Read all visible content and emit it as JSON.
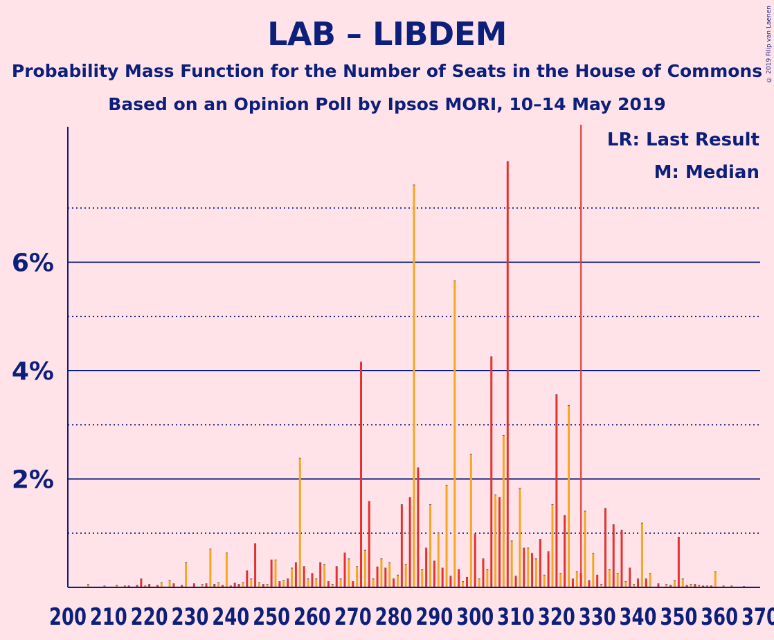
{
  "title": "LAB – LIBDEM",
  "subtitle": "Probability Mass Function for the Number of Seats in the House of Commons",
  "subtitle2": "Based on an Opinion Poll by Ipsos MORI, 10–14 May 2019",
  "copyright": "© 2019 Filip van Laenen",
  "legend": {
    "lr": "LR: Last Result",
    "m": "M: Median"
  },
  "colors": {
    "background": "#FFE3E8",
    "text": "#0C1F7A",
    "axis": "#0C1F7A",
    "lab": "#E4312F",
    "libdem": "#F5A623",
    "last_result_line": "#E4312F"
  },
  "chart_data": {
    "type": "bar",
    "x_unit": "seats",
    "y_unit": "%",
    "xlim": [
      200,
      370
    ],
    "ylim": [
      0,
      8.5
    ],
    "x_ticks": [
      200,
      210,
      220,
      230,
      240,
      250,
      260,
      270,
      280,
      290,
      300,
      310,
      320,
      330,
      340,
      350,
      360,
      370
    ],
    "y_ticks_major": [
      {
        "value": 2,
        "label": "2%"
      },
      {
        "value": 4,
        "label": "4%"
      },
      {
        "value": 6,
        "label": "6%"
      }
    ],
    "y_ticks_minor": [
      1,
      3,
      5,
      7
    ],
    "last_result": 326,
    "series": [
      {
        "name": "LAB",
        "values": [
          [
            215,
            0.02
          ],
          [
            217,
            0.03
          ],
          [
            218,
            0.15
          ],
          [
            220,
            0.05
          ],
          [
            222,
            0.03
          ],
          [
            226,
            0.06
          ],
          [
            228,
            0.03
          ],
          [
            231,
            0.06
          ],
          [
            234,
            0.06
          ],
          [
            236,
            0.05
          ],
          [
            238,
            0.03
          ],
          [
            240,
            0.02
          ],
          [
            241,
            0.07
          ],
          [
            242,
            0.05
          ],
          [
            244,
            0.3
          ],
          [
            246,
            0.8
          ],
          [
            248,
            0.05
          ],
          [
            250,
            0.5
          ],
          [
            252,
            0.1
          ],
          [
            254,
            0.15
          ],
          [
            256,
            0.45
          ],
          [
            258,
            0.38
          ],
          [
            260,
            0.25
          ],
          [
            262,
            0.45
          ],
          [
            264,
            0.1
          ],
          [
            266,
            0.38
          ],
          [
            268,
            0.63
          ],
          [
            270,
            0.1
          ],
          [
            272,
            4.15
          ],
          [
            274,
            1.58
          ],
          [
            276,
            0.37
          ],
          [
            278,
            0.35
          ],
          [
            280,
            0.15
          ],
          [
            282,
            1.52
          ],
          [
            284,
            1.65
          ],
          [
            286,
            2.2
          ],
          [
            288,
            0.72
          ],
          [
            290,
            0.48
          ],
          [
            292,
            0.35
          ],
          [
            294,
            0.2
          ],
          [
            296,
            0.32
          ],
          [
            298,
            0.18
          ],
          [
            300,
            0.98
          ],
          [
            302,
            0.52
          ],
          [
            304,
            4.25
          ],
          [
            306,
            1.65
          ],
          [
            308,
            7.85
          ],
          [
            310,
            0.2
          ],
          [
            312,
            0.72
          ],
          [
            314,
            0.62
          ],
          [
            316,
            0.88
          ],
          [
            318,
            0.65
          ],
          [
            320,
            3.55
          ],
          [
            322,
            1.32
          ],
          [
            324,
            0.15
          ],
          [
            326,
            0.25
          ],
          [
            328,
            0.12
          ],
          [
            330,
            0.22
          ],
          [
            332,
            1.45
          ],
          [
            334,
            1.15
          ],
          [
            336,
            1.05
          ],
          [
            338,
            0.35
          ],
          [
            340,
            0.15
          ],
          [
            342,
            0.15
          ],
          [
            345,
            0.06
          ],
          [
            348,
            0.03
          ],
          [
            350,
            0.92
          ],
          [
            352,
            0.03
          ],
          [
            354,
            0.05
          ],
          [
            356,
            0.02
          ],
          [
            358,
            0.02
          ]
        ]
      },
      {
        "name": "LIBDEM",
        "values": [
          [
            205,
            0.05
          ],
          [
            209,
            0.02
          ],
          [
            212,
            0.03
          ],
          [
            214,
            0.02
          ],
          [
            219,
            0.02
          ],
          [
            223,
            0.08
          ],
          [
            225,
            0.12
          ],
          [
            229,
            0.45
          ],
          [
            233,
            0.05
          ],
          [
            235,
            0.7
          ],
          [
            237,
            0.08
          ],
          [
            239,
            0.63
          ],
          [
            243,
            0.08
          ],
          [
            245,
            0.15
          ],
          [
            247,
            0.08
          ],
          [
            249,
            0.05
          ],
          [
            251,
            0.5
          ],
          [
            253,
            0.12
          ],
          [
            255,
            0.35
          ],
          [
            257,
            2.38
          ],
          [
            259,
            0.15
          ],
          [
            261,
            0.15
          ],
          [
            263,
            0.42
          ],
          [
            265,
            0.05
          ],
          [
            267,
            0.15
          ],
          [
            269,
            0.52
          ],
          [
            271,
            0.38
          ],
          [
            273,
            0.68
          ],
          [
            275,
            0.15
          ],
          [
            277,
            0.52
          ],
          [
            279,
            0.45
          ],
          [
            281,
            0.22
          ],
          [
            283,
            0.42
          ],
          [
            285,
            7.42
          ],
          [
            287,
            0.32
          ],
          [
            289,
            1.52
          ],
          [
            291,
            1.0
          ],
          [
            293,
            1.88
          ],
          [
            295,
            5.65
          ],
          [
            297,
            0.1
          ],
          [
            299,
            2.45
          ],
          [
            301,
            0.15
          ],
          [
            303,
            0.32
          ],
          [
            305,
            1.7
          ],
          [
            307,
            2.8
          ],
          [
            309,
            0.85
          ],
          [
            311,
            1.82
          ],
          [
            313,
            0.72
          ],
          [
            315,
            0.52
          ],
          [
            317,
            0.22
          ],
          [
            319,
            1.52
          ],
          [
            321,
            0.25
          ],
          [
            323,
            3.35
          ],
          [
            325,
            0.28
          ],
          [
            327,
            1.4
          ],
          [
            329,
            0.62
          ],
          [
            331,
            0.05
          ],
          [
            333,
            0.32
          ],
          [
            335,
            0.25
          ],
          [
            337,
            0.1
          ],
          [
            339,
            0.05
          ],
          [
            341,
            1.18
          ],
          [
            343,
            0.25
          ],
          [
            347,
            0.05
          ],
          [
            349,
            0.12
          ],
          [
            351,
            0.15
          ],
          [
            353,
            0.05
          ],
          [
            355,
            0.03
          ],
          [
            357,
            0.02
          ],
          [
            359,
            0.28
          ],
          [
            361,
            0.02
          ],
          [
            363,
            0.02
          ],
          [
            366,
            0.01
          ]
        ]
      }
    ]
  }
}
